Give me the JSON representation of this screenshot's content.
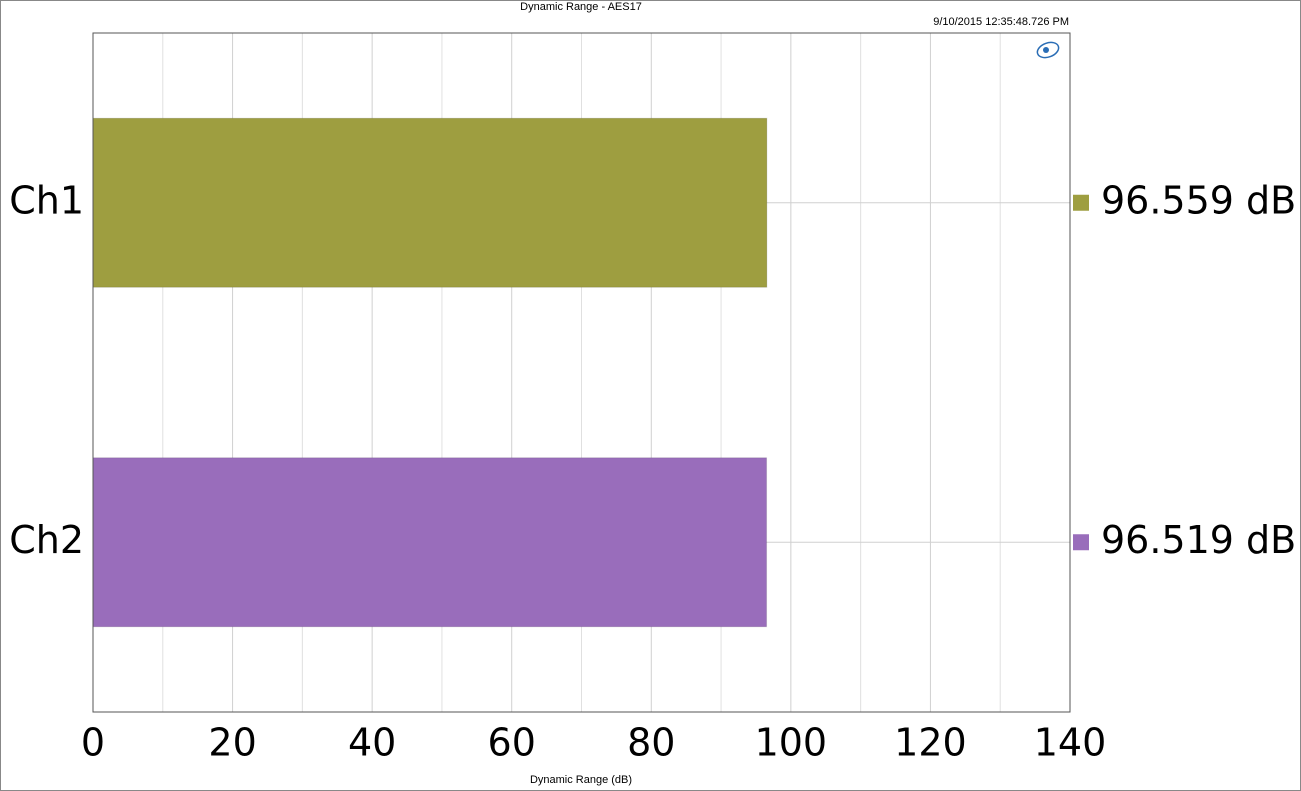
{
  "chart_data": {
    "type": "hbar",
    "title": "Dynamic Range - AES17",
    "timestamp": "9/10/2015 12:35:48.726 PM",
    "x_label": "Dynamic Range (dB)",
    "categories": [
      "Ch1",
      "Ch2"
    ],
    "values": [
      96.559,
      96.519
    ],
    "value_labels": [
      "96.559 dB",
      "96.519 dB"
    ],
    "colors": [
      "#9e9e40",
      "#996dbb"
    ],
    "xlim": [
      0,
      140
    ],
    "xticks": [
      0,
      20,
      40,
      60,
      80,
      100,
      120,
      140
    ],
    "xminorticks": [
      10,
      30,
      50,
      70,
      90,
      110,
      130
    ],
    "grid": true
  }
}
